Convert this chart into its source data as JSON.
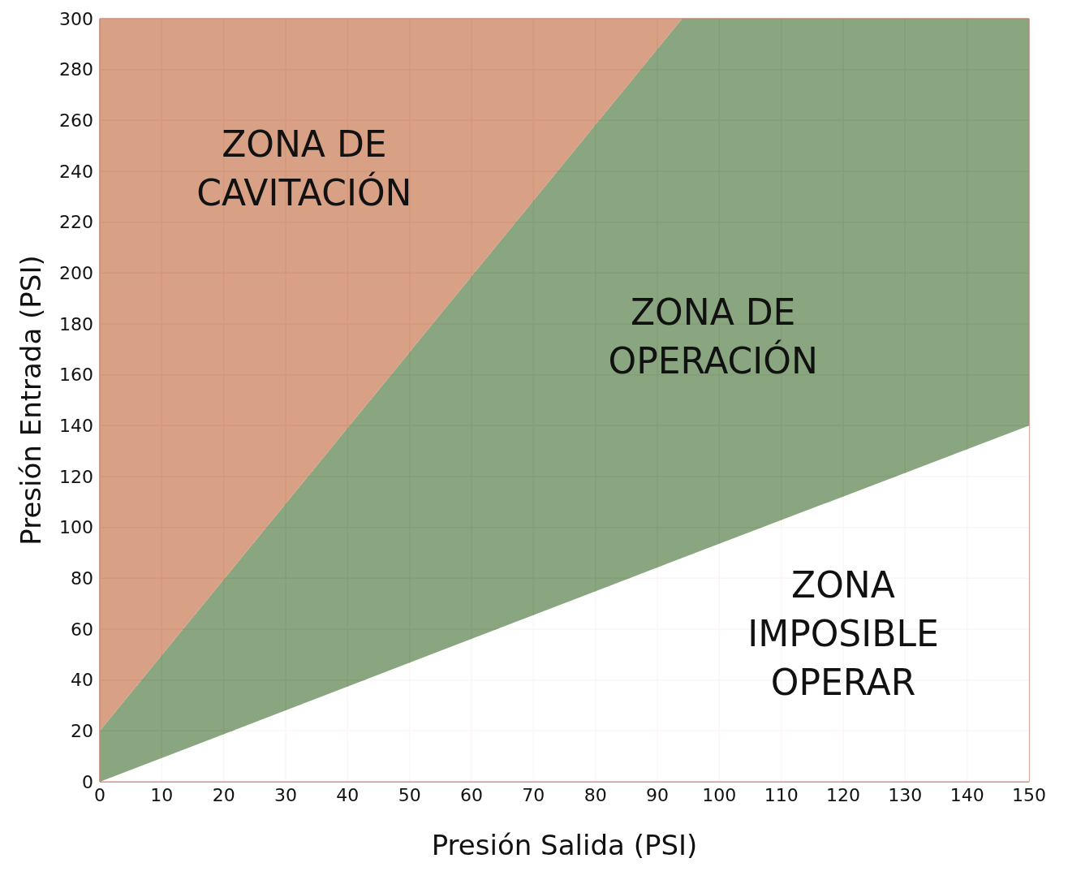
{
  "chart_data": {
    "type": "area",
    "stacked": true,
    "xlabel": "Presión Salida (PSI)",
    "ylabel": "Presión Entrada (PSI)",
    "x": [
      0,
      94,
      150
    ],
    "series": [
      {
        "color": "#ffffff",
        "values": [
          0,
          88,
          140
        ]
      },
      {
        "color": "#7f9e75",
        "values": [
          20,
          212,
          160
        ]
      },
      {
        "color": "#d5987b",
        "values": [
          280,
          0,
          0
        ]
      }
    ],
    "xlim": [
      0,
      150
    ],
    "xticks": [
      0,
      10,
      20,
      30,
      40,
      50,
      60,
      70,
      80,
      90,
      100,
      110,
      120,
      130,
      140,
      150
    ],
    "ylim": [
      0,
      300
    ],
    "yticks": [
      0,
      20,
      40,
      60,
      80,
      100,
      120,
      140,
      160,
      180,
      200,
      220,
      240,
      260,
      280,
      300
    ],
    "grid": true,
    "legend": false,
    "annotations": [
      "ZONA DE\nCAVITACIÓN",
      "ZONA DE\nOPERACIÓN",
      "ZONA\nIMPOSIBLE\nOPERAR"
    ]
  }
}
